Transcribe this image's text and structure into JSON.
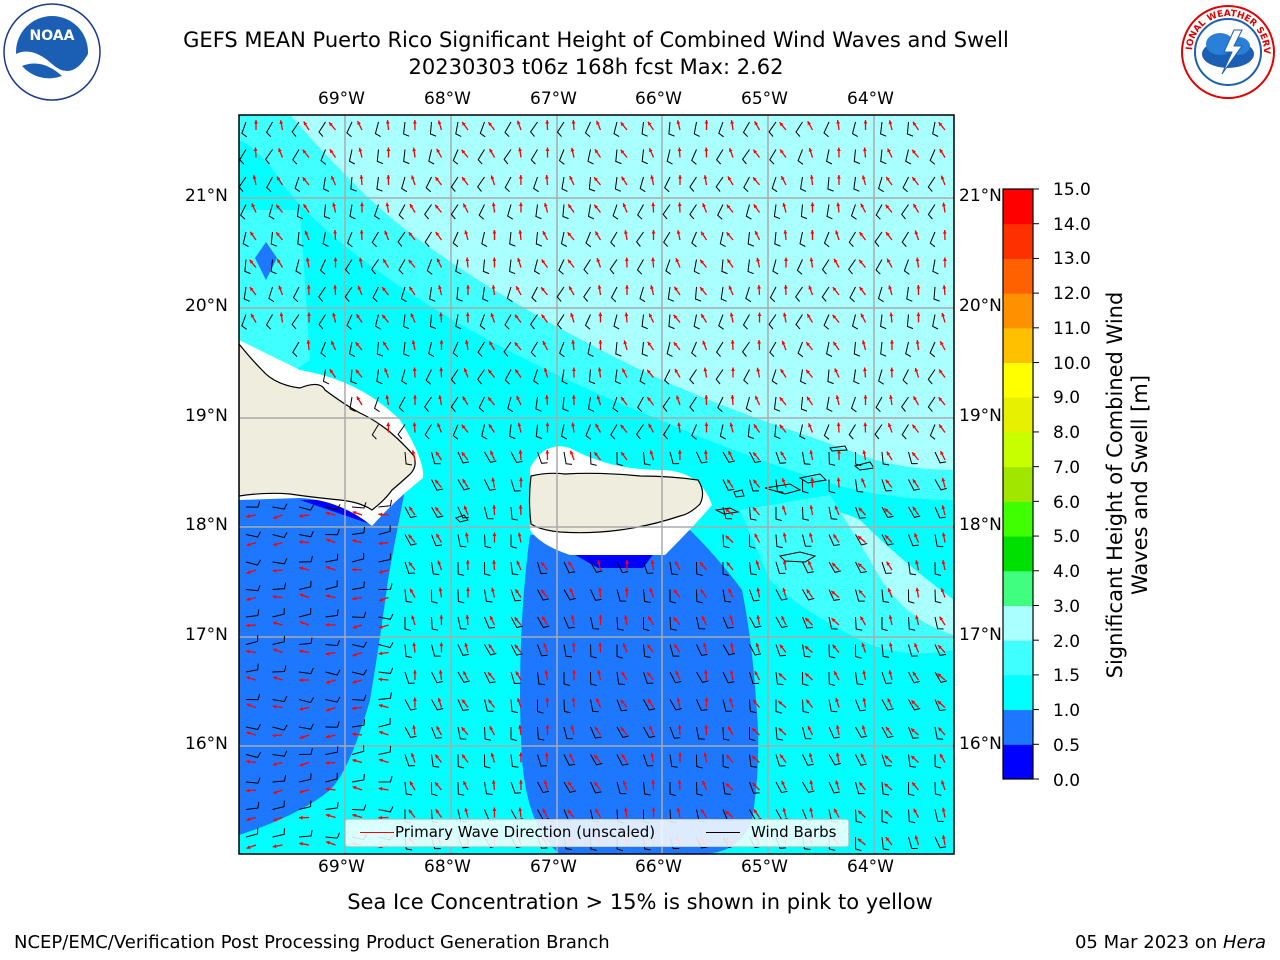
{
  "title_line1": "GEFS MEAN Puerto Rico Significant Height of Combined Wind Waves and Swell",
  "title_line2": "20230303 t06z 168h fcst   Max: 2.62",
  "caption": "Sea Ice Concentration > 15% is shown in pink to yellow",
  "footer_left": "NCEP/EMC/Verification Post Processing Product Generation Branch",
  "footer_right_date": "05 Mar 2023 on ",
  "footer_right_host": "Hera",
  "logos": {
    "noaa": "NOAA",
    "nws_text": "NATIONAL WEATHER SERVICE"
  },
  "longitude_labels": [
    "69°W",
    "68°W",
    "67°W",
    "66°W",
    "65°W",
    "64°W"
  ],
  "latitude_labels": [
    "21°N",
    "20°N",
    "19°N",
    "18°N",
    "17°N",
    "16°N"
  ],
  "legend": {
    "primary_wave": "Primary Wave Direction (unscaled)",
    "wind_barbs": "Wind Barbs",
    "primary_color": "#ff0000",
    "barb_color": "#000000"
  },
  "colorbar": {
    "label": "Significant Height of Combined Wind Waves and Swell [m]",
    "ticks": [
      "15.0",
      "14.0",
      "13.0",
      "12.0",
      "11.0",
      "10.0",
      "9.0",
      "8.0",
      "7.0",
      "6.0",
      "5.0",
      "4.0",
      "3.0",
      "2.0",
      "1.5",
      "1.0",
      "0.5",
      "0.0"
    ],
    "colors_bottom_to_top": [
      "#0000ff",
      "#1e78ff",
      "#00ffff",
      "#40ffff",
      "#aaffff",
      "#40ff80",
      "#00e000",
      "#40ff00",
      "#a0e600",
      "#c8ff00",
      "#e6f000",
      "#ffff00",
      "#ffc000",
      "#ff9000",
      "#ff6000",
      "#ff3000",
      "#ff0000"
    ]
  },
  "map_colors": {
    "land": "#efedde",
    "deep_blue": "#1e78ff",
    "cyan": "#00ffff",
    "light_cyan": "#a8ffff",
    "mid_cyan": "#40ffff"
  }
}
